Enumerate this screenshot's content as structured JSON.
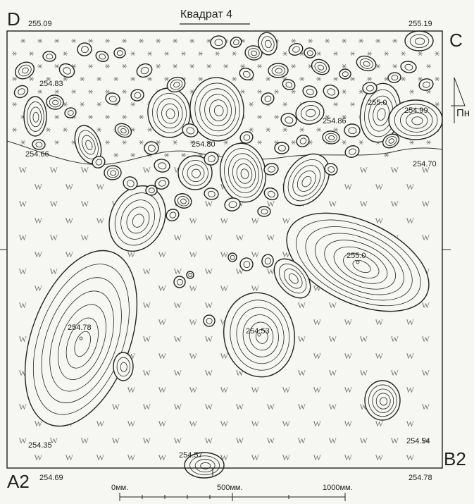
{
  "title": "Квадрат 4",
  "corners": {
    "D": "D",
    "C": "C",
    "A2": "A2",
    "B2": "B2"
  },
  "north": "Пн",
  "elevations": {
    "top_left": "255.09",
    "top_right": "255.19",
    "e1": "254.83",
    "e2": "254.66",
    "e3": "254.80",
    "e4": "254.86",
    "e5": "255.0",
    "e6": "254.99",
    "e7": "254.70",
    "e8": "255.0",
    "e9": "254.78",
    "e10": "254.53",
    "e11": "254.35",
    "e12": "254.57",
    "e13": "254.54",
    "bottom_left": "254.69",
    "bottom_right": "254.78"
  },
  "scale": {
    "s0": "0мм.",
    "s500": "500мм.",
    "s1000": "1000мм."
  },
  "colors": {
    "ink": "#222222",
    "paper": "#f6f6f3",
    "grid": "#555555"
  }
}
